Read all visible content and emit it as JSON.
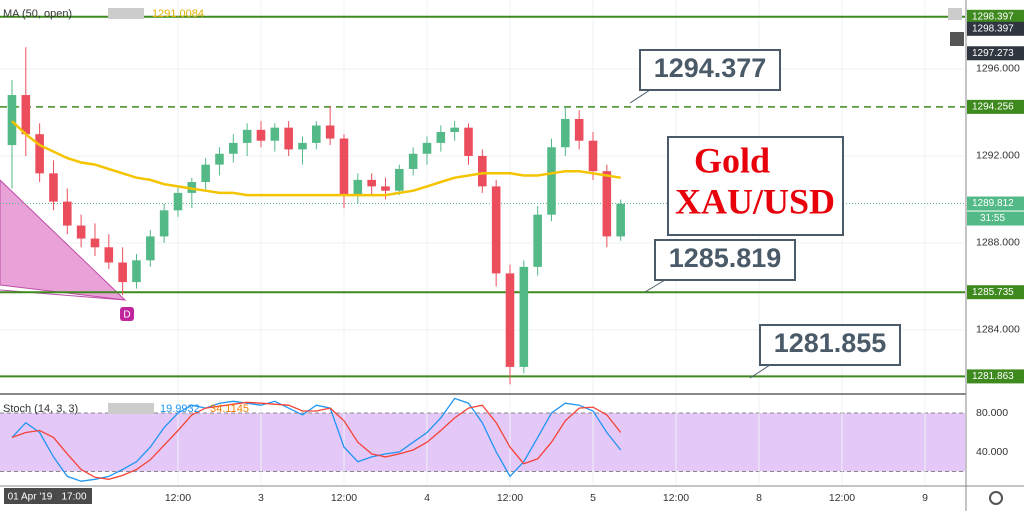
{
  "chart_data": {
    "type": "candlestick",
    "ma_label": "MA (50, open)",
    "ma_value": 1291.0084,
    "x": [
      -12,
      -10,
      -8,
      -6,
      -4,
      -2,
      0,
      2,
      4,
      6,
      8,
      10,
      12,
      14,
      16,
      18,
      20,
      22,
      24,
      26,
      28,
      30,
      32,
      34,
      36,
      38,
      40,
      42,
      44,
      46,
      48,
      50,
      52,
      54,
      56,
      58,
      60,
      62,
      64,
      66,
      68,
      70,
      72,
      74,
      76
    ],
    "open": [
      1292.5,
      1294.8,
      1293,
      1291.2,
      1289.9,
      1288.8,
      1288.2,
      1287.8,
      1287.1,
      1286.2,
      1287.2,
      1288.3,
      1289.5,
      1290.3,
      1290.8,
      1291.6,
      1292.1,
      1292.6,
      1293.2,
      1292.7,
      1293.3,
      1292.3,
      1292.6,
      1293.4,
      1292.8,
      1290.2,
      1290.9,
      1290.6,
      1290.4,
      1291.4,
      1292.1,
      1292.6,
      1293.1,
      1293.3,
      1292,
      1290.6,
      1286.6,
      1282.3,
      1286.9,
      1289.3,
      1292.4,
      1293.7,
      1292.7,
      1291.3,
      1288.3
    ],
    "high": [
      1295.5,
      1297,
      1293.5,
      1291.8,
      1290.5,
      1289.3,
      1288.9,
      1288.4,
      1287.8,
      1287.5,
      1288.6,
      1289.8,
      1290.6,
      1291,
      1291.9,
      1292.4,
      1293,
      1293.5,
      1293.6,
      1293.5,
      1293.6,
      1292.9,
      1293.6,
      1294.3,
      1293,
      1291.2,
      1291.2,
      1291,
      1291.6,
      1292.4,
      1292.9,
      1293.4,
      1293.6,
      1293.5,
      1292.3,
      1290.9,
      1287,
      1287.2,
      1289.7,
      1292.8,
      1294.3,
      1294.1,
      1293.1,
      1291.6,
      1290
    ],
    "low": [
      1290.5,
      1292,
      1290.8,
      1289.5,
      1288.4,
      1287.8,
      1287.4,
      1286.8,
      1285.6,
      1285.9,
      1286.9,
      1288,
      1289.2,
      1289.6,
      1290.4,
      1291.1,
      1291.7,
      1292,
      1292.4,
      1292.2,
      1292,
      1291.6,
      1292.3,
      1292.5,
      1289.6,
      1289.8,
      1290.2,
      1290,
      1290.2,
      1291.1,
      1291.6,
      1292.2,
      1292.7,
      1291.6,
      1290.3,
      1286,
      1281.5,
      1282,
      1286.5,
      1289,
      1292,
      1292.3,
      1290.9,
      1287.8,
      1288.1
    ],
    "close": [
      1294.8,
      1293,
      1291.2,
      1289.9,
      1288.8,
      1288.2,
      1287.8,
      1287.1,
      1286.2,
      1287.2,
      1288.3,
      1289.5,
      1290.3,
      1290.8,
      1291.6,
      1292.1,
      1292.6,
      1293.2,
      1292.7,
      1293.3,
      1292.3,
      1292.6,
      1293.4,
      1292.8,
      1290.2,
      1290.9,
      1290.6,
      1290.4,
      1291.4,
      1292.1,
      1292.6,
      1293.1,
      1293.3,
      1292,
      1290.6,
      1286.6,
      1282.3,
      1286.9,
      1289.3,
      1292.4,
      1293.7,
      1292.7,
      1291.3,
      1288.3,
      1289.8
    ],
    "ma": [
      1293.6,
      1293,
      1292.5,
      1292.2,
      1291.9,
      1291.7,
      1291.6,
      1291.4,
      1291.2,
      1291,
      1290.9,
      1290.7,
      1290.6,
      1290.5,
      1290.4,
      1290.3,
      1290.3,
      1290.2,
      1290.2,
      1290.2,
      1290.2,
      1290.2,
      1290.2,
      1290.2,
      1290.2,
      1290.2,
      1290.2,
      1290.2,
      1290.3,
      1290.4,
      1290.6,
      1290.8,
      1291,
      1291.1,
      1291.2,
      1291.2,
      1291.2,
      1291.1,
      1291.1,
      1291.2,
      1291.3,
      1291.3,
      1291.2,
      1291.1,
      1291
    ],
    "up_color": "#53b987",
    "down_color": "#eb4d5c",
    "ma_color": "#f5c400",
    "xlim": [
      -13.73,
      125.78
    ],
    "xticks": [
      {
        "value": 12,
        "label": "12:00"
      },
      {
        "value": 24,
        "label": "3"
      },
      {
        "value": 36,
        "label": "12:00"
      },
      {
        "value": 48,
        "label": "4"
      },
      {
        "value": 60,
        "label": "12:00"
      },
      {
        "value": 72,
        "label": "5"
      },
      {
        "value": 84,
        "label": "12:00"
      },
      {
        "value": 96,
        "label": "8"
      },
      {
        "value": 108,
        "label": "12:00"
      },
      {
        "value": 120,
        "label": "9"
      }
    ],
    "ylim": [
      1281.1,
      1299.17
    ],
    "yticks": [
      {
        "value": 1296,
        "label": "1296.000"
      },
      {
        "value": 1292,
        "label": "1292.000"
      },
      {
        "value": 1288,
        "label": "1288.000"
      },
      {
        "value": 1284,
        "label": "1284.000"
      }
    ],
    "hlines": [
      {
        "value": 1298.397,
        "style": "solid"
      },
      {
        "value": 1294.256,
        "style": "dashed"
      },
      {
        "value": 1285.735,
        "style": "solid"
      },
      {
        "value": 1281.863,
        "style": "solid"
      }
    ],
    "price_labels": [
      1298.397,
      1297.273
    ],
    "last_price": 1289.812,
    "countdown": "31:55",
    "annotations": [
      "1294.377",
      "1285.819",
      "1281.855"
    ],
    "title_line1": "Gold",
    "title_line2": "XAU/USD",
    "pattern_label": "D",
    "date_label": "01 Apr '19",
    "time_label": "17:00",
    "stoch": {
      "label": "Stoch (14, 3, 3)",
      "k_value": 19.9932,
      "d_value": 34.1145,
      "k": [
        55,
        70,
        60,
        35,
        15,
        10,
        12,
        15,
        22,
        30,
        45,
        65,
        80,
        88,
        85,
        90,
        92,
        90,
        88,
        92,
        85,
        78,
        88,
        85,
        45,
        30,
        35,
        38,
        40,
        50,
        60,
        75,
        95,
        90,
        70,
        40,
        15,
        30,
        55,
        80,
        90,
        88,
        82,
        60,
        42
      ],
      "d": [
        55,
        60,
        62,
        55,
        38,
        22,
        14,
        12,
        16,
        22,
        32,
        47,
        62,
        78,
        85,
        87,
        89,
        91,
        90,
        89,
        88,
        82,
        82,
        85,
        72,
        50,
        38,
        35,
        38,
        42,
        50,
        62,
        75,
        85,
        88,
        70,
        45,
        28,
        33,
        50,
        72,
        85,
        86,
        78,
        60
      ],
      "k_color": "#2196f3",
      "d_color": "#f44336",
      "band": [
        20,
        80
      ],
      "ylim": [
        6.15,
        98.46
      ],
      "yticks": [
        {
          "value": 80,
          "label": "80.000"
        },
        {
          "value": 40,
          "label": "40.000"
        }
      ]
    }
  }
}
